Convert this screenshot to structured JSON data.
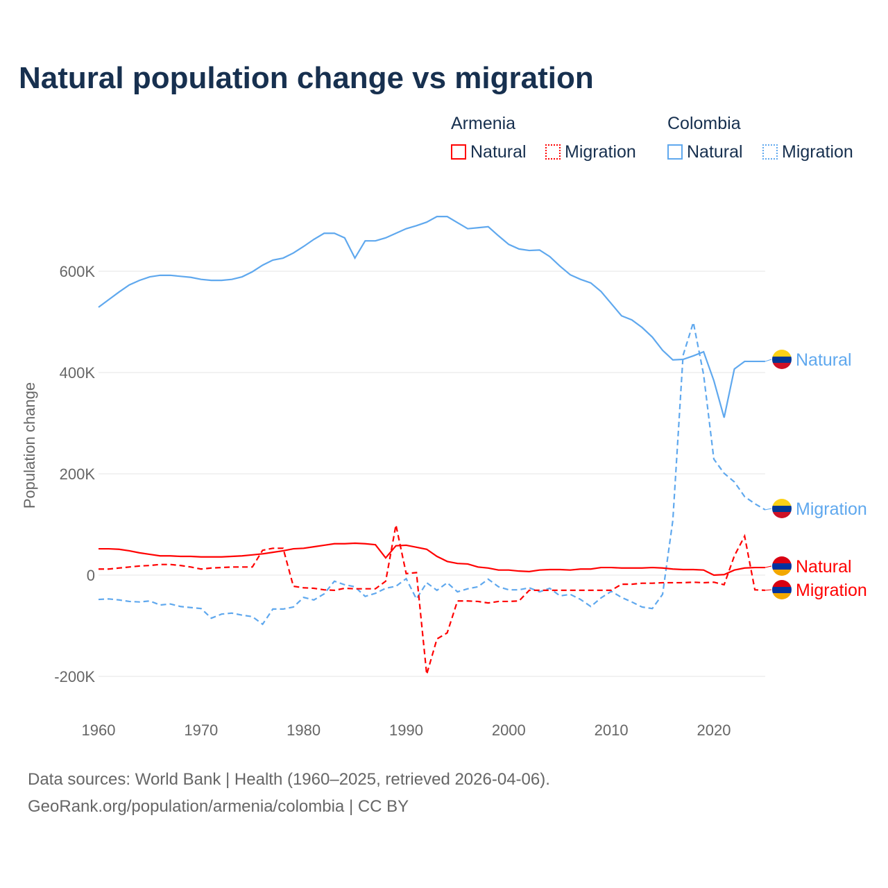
{
  "chart_data": {
    "type": "line",
    "title": "Natural population change vs migration",
    "ylabel": "Population change",
    "xlabel": "",
    "ylim": [
      -200000,
      700000
    ],
    "yticks": [
      {
        "v": -200000,
        "label": "-200K"
      },
      {
        "v": 0,
        "label": "0"
      },
      {
        "v": 200000,
        "label": "200K"
      },
      {
        "v": 400000,
        "label": "400K"
      },
      {
        "v": 600000,
        "label": "600K"
      }
    ],
    "xticks": [
      1960,
      1970,
      1980,
      1990,
      2000,
      2010,
      2020
    ],
    "x_start": 1960,
    "groups": [
      {
        "name": "Armenia",
        "color": "#ff0000"
      },
      {
        "name": "Colombia",
        "color": "#5fa8ee"
      }
    ],
    "series": [
      {
        "country": "Colombia",
        "name": "Natural",
        "color": "#5fa8ee",
        "dashed": false,
        "values": [
          529,
          544,
          559,
          573,
          582,
          589,
          592,
          592,
          590,
          588,
          584,
          582,
          582,
          584,
          589,
          599,
          612,
          622,
          626,
          636,
          649,
          663,
          675,
          675,
          666,
          626,
          660,
          660,
          666,
          675,
          684,
          690,
          697,
          708,
          708,
          696,
          684,
          686,
          688,
          670,
          653,
          644,
          641,
          642,
          629,
          610,
          593,
          584,
          577,
          560,
          536,
          512,
          504,
          489,
          470,
          444,
          425,
          426,
          433,
          441,
          384,
          311,
          407,
          422,
          422,
          422
        ]
      },
      {
        "country": "Colombia",
        "name": "Migration",
        "color": "#5fa8ee",
        "dashed": true,
        "values": [
          -48,
          -47,
          -49,
          -52,
          -53,
          -51,
          -59,
          -57,
          -62,
          -64,
          -66,
          -85,
          -77,
          -75,
          -79,
          -82,
          -97,
          -67,
          -67,
          -63,
          -44,
          -49,
          -37,
          -12,
          -19,
          -23,
          -42,
          -36,
          -26,
          -22,
          -7,
          -47,
          -15,
          -30,
          -15,
          -33,
          -27,
          -23,
          -8,
          -23,
          -29,
          -29,
          -25,
          -33,
          -26,
          -41,
          -38,
          -48,
          -62,
          -45,
          -32,
          -44,
          -53,
          -63,
          -66,
          -38,
          108,
          434,
          499,
          396,
          229,
          201,
          184,
          155,
          141,
          129
        ]
      },
      {
        "country": "Armenia",
        "name": "Natural",
        "color": "#ff0000",
        "dashed": false,
        "values": [
          52,
          52,
          51,
          48,
          44,
          41,
          38,
          38,
          37,
          37,
          36,
          36,
          36,
          37,
          38,
          40,
          42,
          45,
          48,
          52,
          53,
          56,
          59,
          62,
          62,
          63,
          62,
          60,
          34,
          58,
          59,
          55,
          51,
          37,
          27,
          23,
          22,
          16,
          14,
          10,
          10,
          8,
          7,
          10,
          11,
          11,
          10,
          12,
          12,
          15,
          15,
          14,
          14,
          14,
          15,
          14,
          12,
          11,
          11,
          10,
          0,
          1,
          10,
          14,
          15,
          15
        ]
      },
      {
        "country": "Armenia",
        "name": "Migration",
        "color": "#ff0000",
        "dashed": true,
        "values": [
          12,
          12,
          14,
          16,
          18,
          19,
          21,
          21,
          19,
          16,
          12,
          14,
          15,
          16,
          16,
          16,
          49,
          53,
          53,
          -22,
          -25,
          -26,
          -29,
          -30,
          -26,
          -27,
          -27,
          -27,
          -12,
          99,
          3,
          5,
          -196,
          -126,
          -114,
          -51,
          -51,
          -52,
          -55,
          -52,
          -52,
          -51,
          -30,
          -30,
          -30,
          -30,
          -30,
          -30,
          -30,
          -30,
          -30,
          -18,
          -18,
          -16,
          -16,
          -15,
          -15,
          -15,
          -14,
          -15,
          -14,
          -19,
          38,
          77,
          -29,
          -30
        ]
      }
    ],
    "values_unit": "thousands"
  },
  "legend": {
    "armenia": "Armenia",
    "colombia": "Colombia",
    "natural": "Natural",
    "migration": "Migration"
  },
  "source_line1": "Data sources: World Bank | Health (1960–2025, retrieved 2026-04-06).",
  "source_line2": "GeoRank.org/population/armenia/colombia | CC BY"
}
